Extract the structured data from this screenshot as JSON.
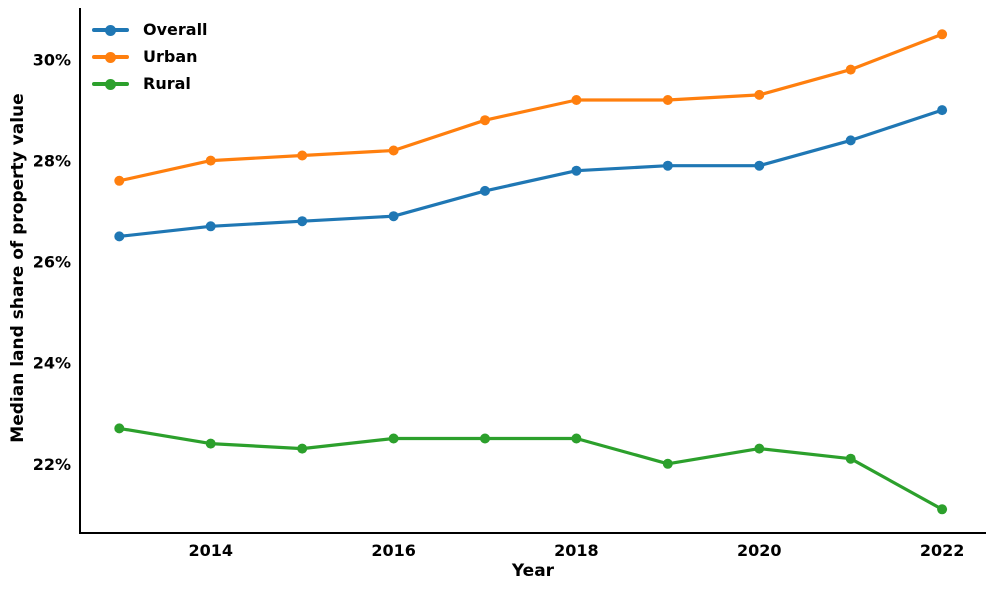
{
  "chart_data": {
    "type": "line",
    "title": "",
    "xlabel": "Year",
    "ylabel": "Median land share of property value",
    "x": [
      2013,
      2014,
      2015,
      2016,
      2017,
      2018,
      2019,
      2020,
      2021,
      2022
    ],
    "series": [
      {
        "name": "Overall",
        "color": "#1f77b4",
        "values": [
          26.5,
          26.7,
          26.8,
          26.9,
          27.4,
          27.8,
          27.9,
          27.9,
          28.4,
          29.0
        ]
      },
      {
        "name": "Urban",
        "color": "#ff7f0e",
        "values": [
          27.6,
          28.0,
          28.1,
          28.2,
          28.8,
          29.2,
          29.2,
          29.3,
          29.8,
          30.5
        ]
      },
      {
        "name": "Rural",
        "color": "#2ca02c",
        "values": [
          22.7,
          22.4,
          22.3,
          22.5,
          22.5,
          22.5,
          22.0,
          22.3,
          22.1,
          21.1
        ]
      }
    ],
    "x_ticks": [
      2014,
      2016,
      2018,
      2020,
      2022
    ],
    "x_tick_labels": [
      "2014",
      "2016",
      "2018",
      "2020",
      "2022"
    ],
    "y_ticks": [
      22,
      24,
      26,
      28,
      30
    ],
    "y_tick_labels": [
      "22%",
      "24%",
      "26%",
      "28%",
      "30%"
    ],
    "xlim": [
      2012.57,
      2022.48
    ],
    "ylim": [
      20.63,
      31.02
    ],
    "grid": false,
    "legend_position": "upper left",
    "axis_color": "#000000",
    "background_color": "#ffffff"
  }
}
